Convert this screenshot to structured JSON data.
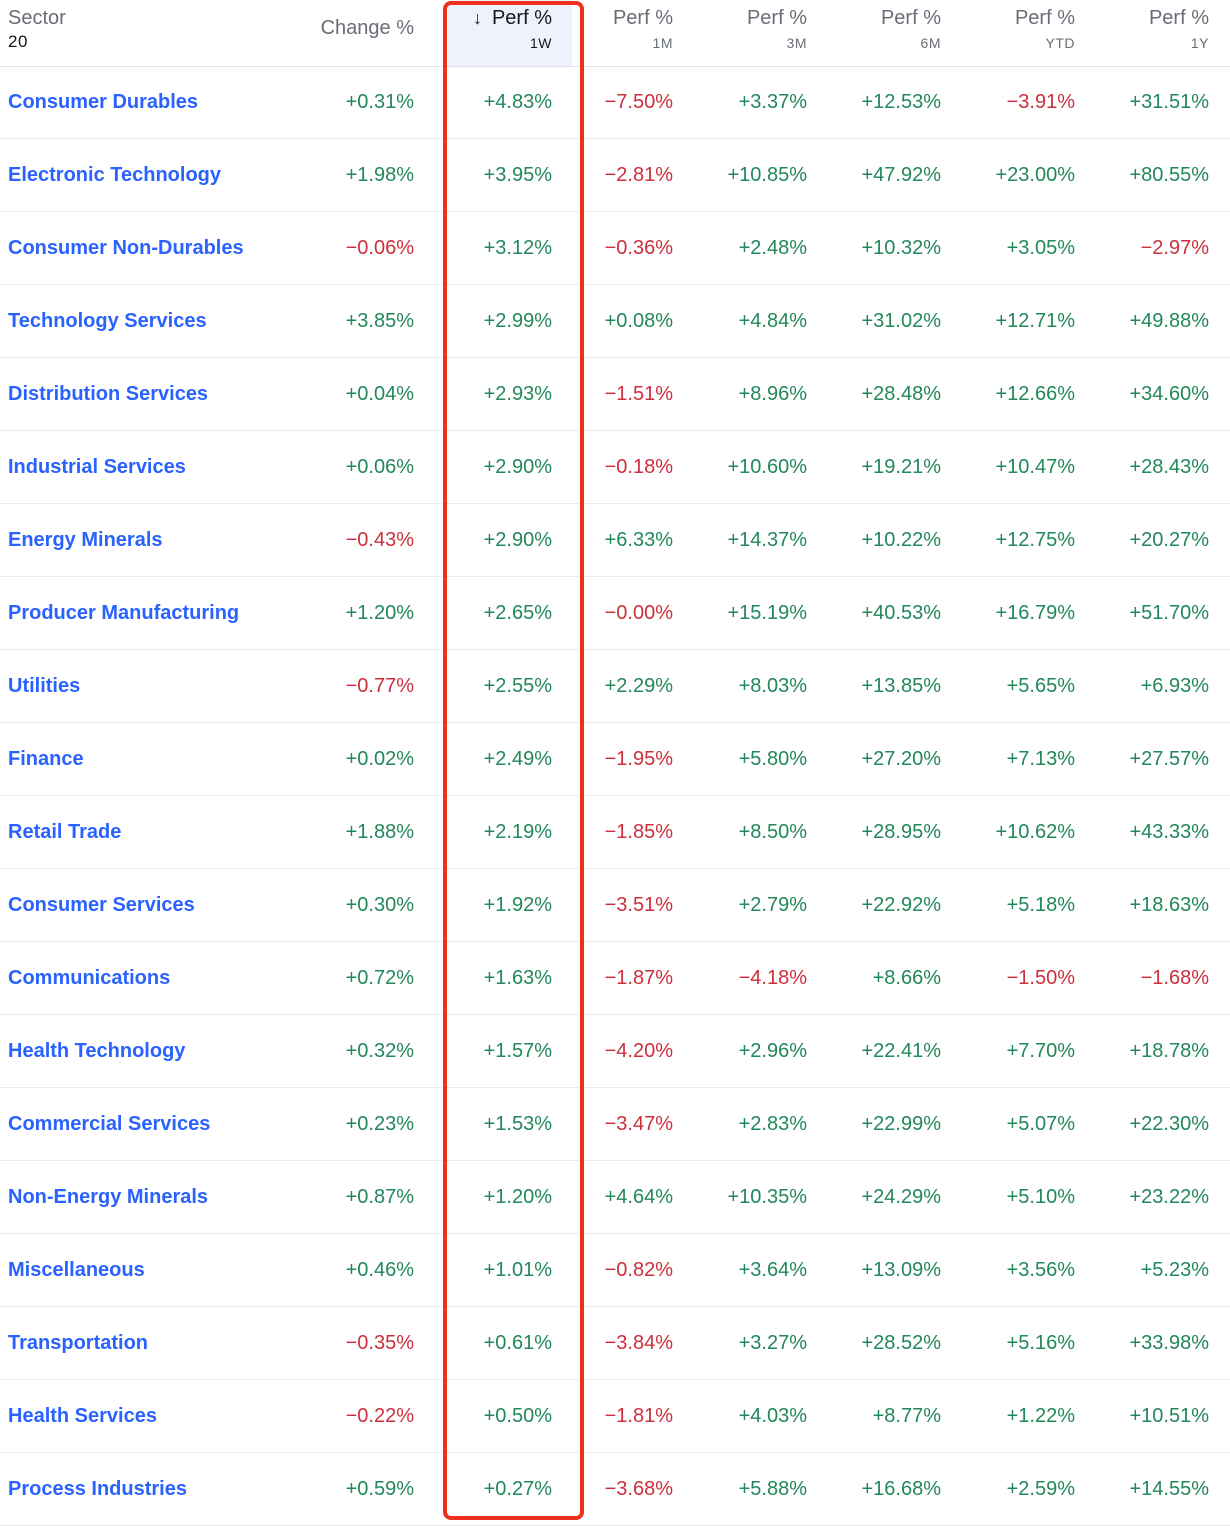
{
  "header": {
    "sector_label": "Sector",
    "sector_count": "20",
    "change_label": "Change %",
    "sort_icon": "arrow-down-icon",
    "columns": [
      {
        "label": "Perf %",
        "sub": "1W"
      },
      {
        "label": "Perf %",
        "sub": "1M"
      },
      {
        "label": "Perf %",
        "sub": "3M"
      },
      {
        "label": "Perf %",
        "sub": "6M"
      },
      {
        "label": "Perf %",
        "sub": "YTD"
      },
      {
        "label": "Perf %",
        "sub": "1Y"
      }
    ]
  },
  "colors": {
    "positive": "#22875a",
    "negative": "#cc2f3c",
    "link": "#2962ff",
    "highlight_border": "#f0301f"
  },
  "rows": [
    {
      "sector": "Consumer Durables",
      "values": [
        "+0.31%",
        "+4.83%",
        "−7.50%",
        "+3.37%",
        "+12.53%",
        "−3.91%",
        "+31.51%"
      ]
    },
    {
      "sector": "Electronic Technology",
      "values": [
        "+1.98%",
        "+3.95%",
        "−2.81%",
        "+10.85%",
        "+47.92%",
        "+23.00%",
        "+80.55%"
      ]
    },
    {
      "sector": "Consumer Non-Durables",
      "values": [
        "−0.06%",
        "+3.12%",
        "−0.36%",
        "+2.48%",
        "+10.32%",
        "+3.05%",
        "−2.97%"
      ]
    },
    {
      "sector": "Technology Services",
      "values": [
        "+3.85%",
        "+2.99%",
        "+0.08%",
        "+4.84%",
        "+31.02%",
        "+12.71%",
        "+49.88%"
      ]
    },
    {
      "sector": "Distribution Services",
      "values": [
        "+0.04%",
        "+2.93%",
        "−1.51%",
        "+8.96%",
        "+28.48%",
        "+12.66%",
        "+34.60%"
      ]
    },
    {
      "sector": "Industrial Services",
      "values": [
        "+0.06%",
        "+2.90%",
        "−0.18%",
        "+10.60%",
        "+19.21%",
        "+10.47%",
        "+28.43%"
      ]
    },
    {
      "sector": "Energy Minerals",
      "values": [
        "−0.43%",
        "+2.90%",
        "+6.33%",
        "+14.37%",
        "+10.22%",
        "+12.75%",
        "+20.27%"
      ]
    },
    {
      "sector": "Producer Manufacturing",
      "values": [
        "+1.20%",
        "+2.65%",
        "−0.00%",
        "+15.19%",
        "+40.53%",
        "+16.79%",
        "+51.70%"
      ]
    },
    {
      "sector": "Utilities",
      "values": [
        "−0.77%",
        "+2.55%",
        "+2.29%",
        "+8.03%",
        "+13.85%",
        "+5.65%",
        "+6.93%"
      ]
    },
    {
      "sector": "Finance",
      "values": [
        "+0.02%",
        "+2.49%",
        "−1.95%",
        "+5.80%",
        "+27.20%",
        "+7.13%",
        "+27.57%"
      ]
    },
    {
      "sector": "Retail Trade",
      "values": [
        "+1.88%",
        "+2.19%",
        "−1.85%",
        "+8.50%",
        "+28.95%",
        "+10.62%",
        "+43.33%"
      ]
    },
    {
      "sector": "Consumer Services",
      "values": [
        "+0.30%",
        "+1.92%",
        "−3.51%",
        "+2.79%",
        "+22.92%",
        "+5.18%",
        "+18.63%"
      ]
    },
    {
      "sector": "Communications",
      "values": [
        "+0.72%",
        "+1.63%",
        "−1.87%",
        "−4.18%",
        "+8.66%",
        "−1.50%",
        "−1.68%"
      ]
    },
    {
      "sector": "Health Technology",
      "values": [
        "+0.32%",
        "+1.57%",
        "−4.20%",
        "+2.96%",
        "+22.41%",
        "+7.70%",
        "+18.78%"
      ]
    },
    {
      "sector": "Commercial Services",
      "values": [
        "+0.23%",
        "+1.53%",
        "−3.47%",
        "+2.83%",
        "+22.99%",
        "+5.07%",
        "+22.30%"
      ]
    },
    {
      "sector": "Non-Energy Minerals",
      "values": [
        "+0.87%",
        "+1.20%",
        "+4.64%",
        "+10.35%",
        "+24.29%",
        "+5.10%",
        "+23.22%"
      ]
    },
    {
      "sector": "Miscellaneous",
      "values": [
        "+0.46%",
        "+1.01%",
        "−0.82%",
        "+3.64%",
        "+13.09%",
        "+3.56%",
        "+5.23%"
      ]
    },
    {
      "sector": "Transportation",
      "values": [
        "−0.35%",
        "+0.61%",
        "−3.84%",
        "+3.27%",
        "+28.52%",
        "+5.16%",
        "+33.98%"
      ]
    },
    {
      "sector": "Health Services",
      "values": [
        "−0.22%",
        "+0.50%",
        "−1.81%",
        "+4.03%",
        "+8.77%",
        "+1.22%",
        "+10.51%"
      ]
    },
    {
      "sector": "Process Industries",
      "values": [
        "+0.59%",
        "+0.27%",
        "−3.68%",
        "+5.88%",
        "+16.68%",
        "+2.59%",
        "+14.55%"
      ]
    }
  ]
}
